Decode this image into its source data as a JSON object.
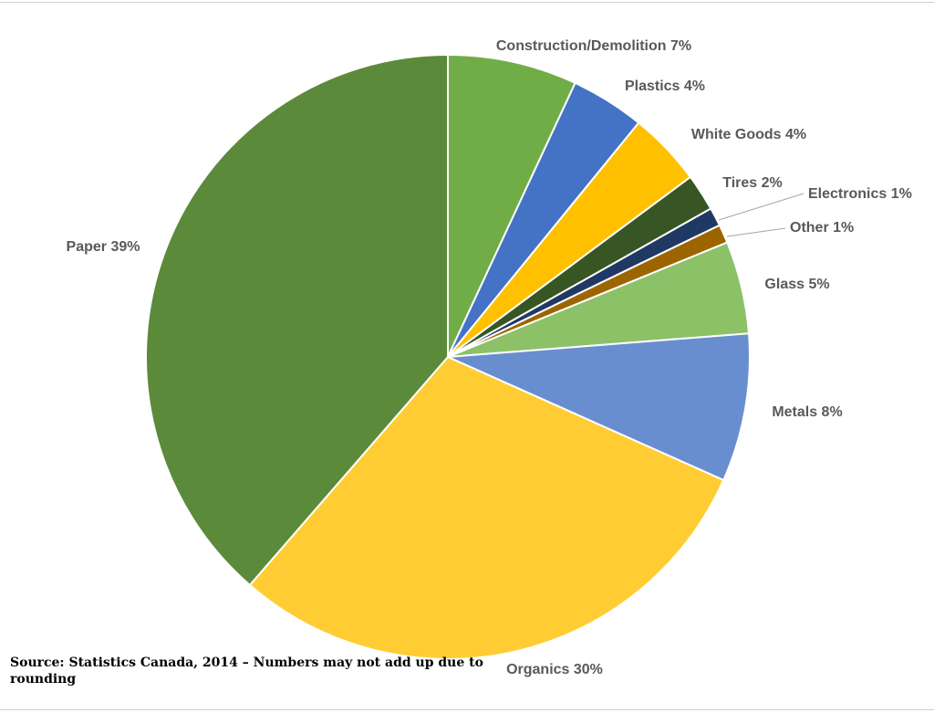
{
  "chart_data": {
    "type": "pie",
    "title": "",
    "slices": [
      {
        "label": "Construction/Demolition 7%",
        "name": "Construction/Demolition",
        "value": 7,
        "color": "#70AD47"
      },
      {
        "label": "Plastics 4%",
        "name": "Plastics",
        "value": 4,
        "color": "#4472C4"
      },
      {
        "label": "White Goods 4%",
        "name": "White Goods",
        "value": 4,
        "color": "#FFC000"
      },
      {
        "label": "Tires 2%",
        "name": "Tires",
        "value": 2,
        "color": "#375623"
      },
      {
        "label": "Electronics 1%",
        "name": "Electronics",
        "value": 1,
        "color": "#203864"
      },
      {
        "label": "Other 1%",
        "name": "Other",
        "value": 1,
        "color": "#9C6500"
      },
      {
        "label": "Glass 5%",
        "name": "Glass",
        "value": 5,
        "color": "#8CC168"
      },
      {
        "label": "Metals 8%",
        "name": "Metals",
        "value": 8,
        "color": "#698ED0"
      },
      {
        "label": "Organics 30%",
        "name": "Organics",
        "value": 30,
        "color": "#FFCD33"
      },
      {
        "label": "Paper 39%",
        "name": "Paper",
        "value": 39,
        "color": "#5B8A3A"
      }
    ],
    "legend": "none"
  },
  "source_note": "Source: Statistics Canada, 2014 – Numbers may not add up due to rounding"
}
